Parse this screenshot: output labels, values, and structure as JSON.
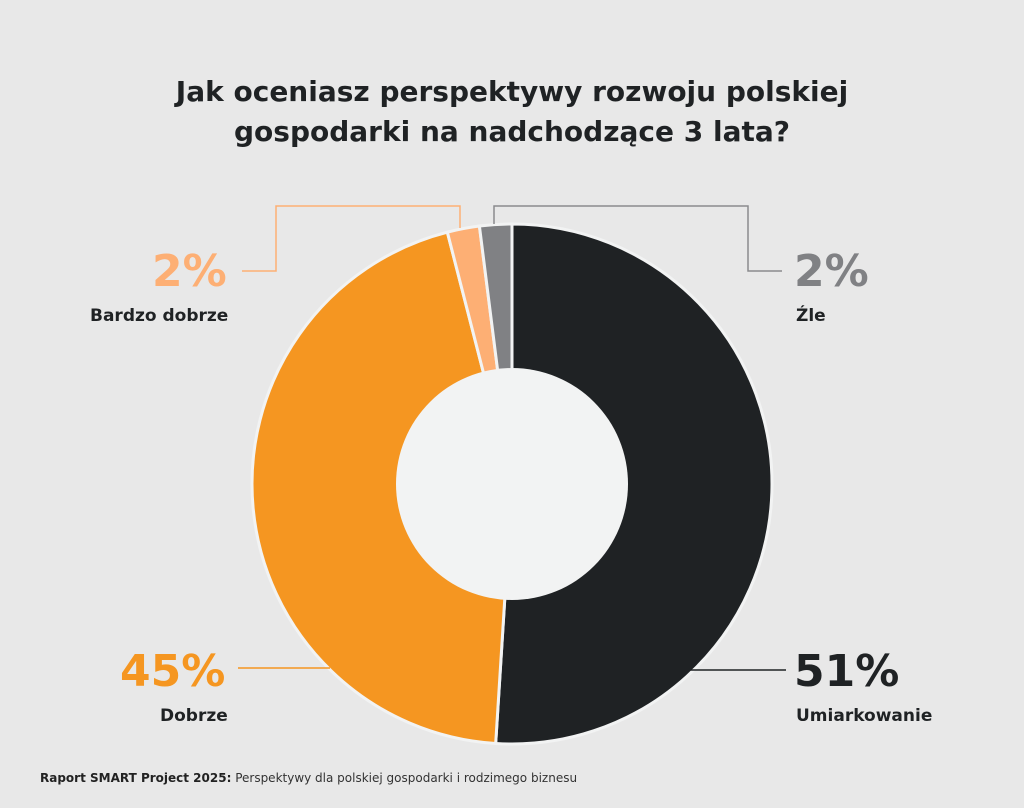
{
  "title_line1": "Jak oceniasz perspektywy rozwoju polskiej",
  "title_line2": "gospodarki na nadchodzące 3 lata?",
  "chart_data": {
    "type": "pie",
    "variant": "donut",
    "title": "Jak oceniasz perspektywy rozwoju polskiej gospodarki na nadchodzące 3 lata?",
    "categories": [
      "Umiarkowanie",
      "Dobrze",
      "Bardzo dobrze",
      "Źle"
    ],
    "values": [
      51,
      45,
      2,
      2
    ],
    "labels": [
      "51%",
      "45%",
      "2%",
      "2%"
    ],
    "colors": [
      "#1f2224",
      "#f59621",
      "#fdaf74",
      "#808184"
    ]
  },
  "footer": {
    "bold": "Raport SMART Project 2025:",
    "text": " Perspektywy dla polskiej gospodarki i rodzimego biznesu"
  }
}
